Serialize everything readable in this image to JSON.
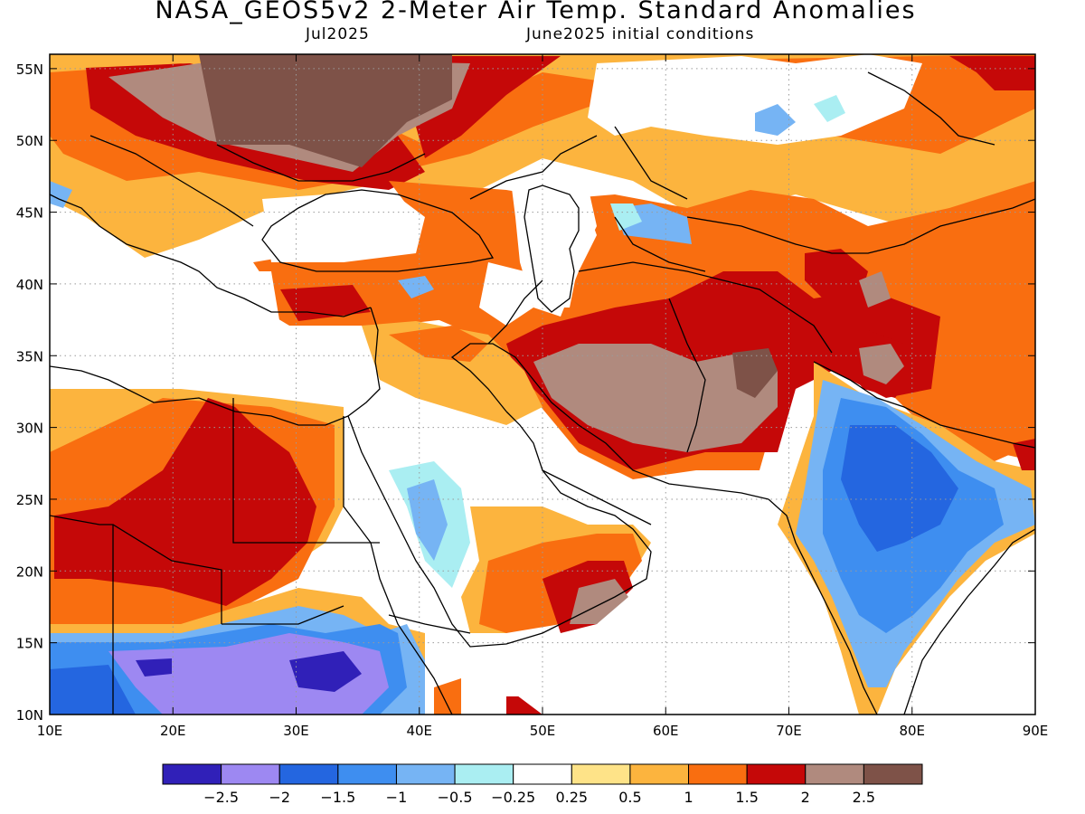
{
  "title": "NASA_GEOS5v2 2-Meter Air Temp. Standard Anomalies",
  "subtitle_left": "Jul2025",
  "subtitle_right": "June2025 initial conditions",
  "map": {
    "lon_range": [
      10,
      90
    ],
    "lat_range": [
      10,
      56
    ],
    "lon_ticks": [
      "10E",
      "20E",
      "30E",
      "40E",
      "50E",
      "60E",
      "70E",
      "80E",
      "90E"
    ],
    "lat_ticks": [
      "10N",
      "15N",
      "20N",
      "25N",
      "30N",
      "35N",
      "40N",
      "45N",
      "50N",
      "55N"
    ],
    "gridlines": true
  },
  "colorbar": {
    "labels": [
      "-2.5",
      "-2",
      "-1.5",
      "-1",
      "-0.5",
      "-0.25",
      "0.25",
      "0.5",
      "1",
      "1.5",
      "2",
      "2.5"
    ],
    "colors": [
      "#3020b8",
      "#9d88f2",
      "#2466e0",
      "#3e8ef0",
      "#76b4f4",
      "#aaeef2",
      "#ffffff",
      "#fee388",
      "#fcb43e",
      "#f96e10",
      "#c50808",
      "#b08a7e",
      "#7e5248"
    ]
  }
}
